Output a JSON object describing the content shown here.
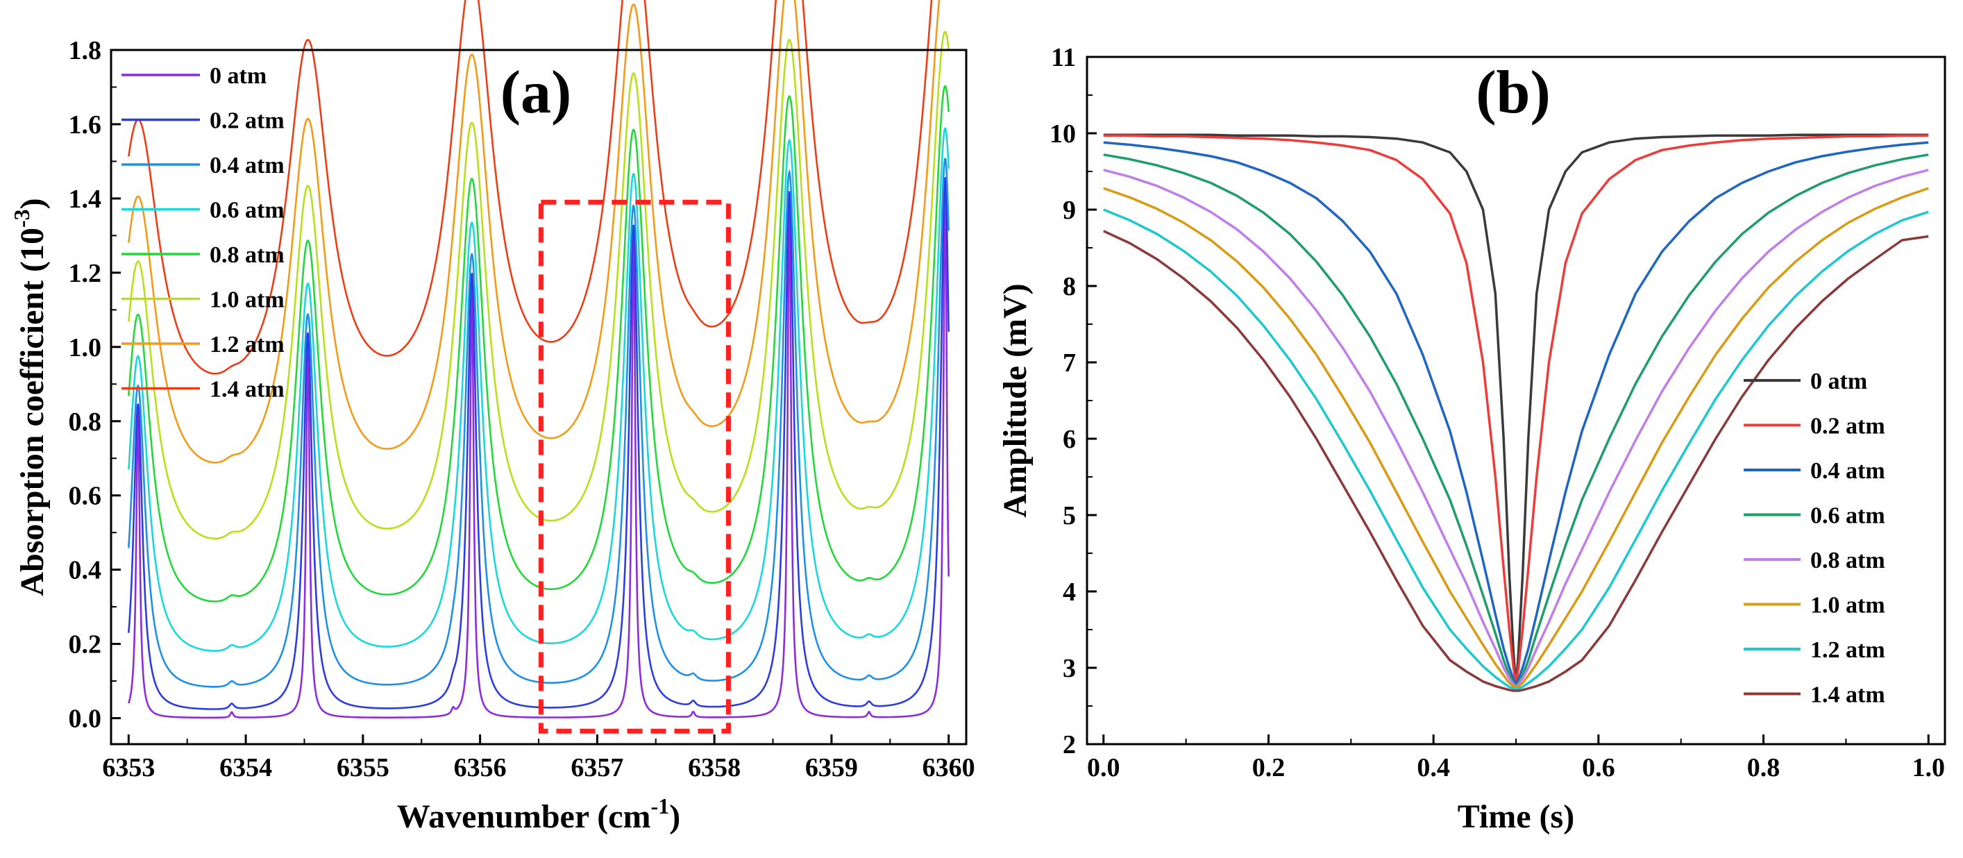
{
  "chart_data": [
    {
      "type": "line",
      "panel_label": "(a)",
      "xlabel": "Wavenumber (cm",
      "xlabel_sup": "-1",
      "xlabel_end": ")",
      "ylabel": "Absorption coefficient (10",
      "ylabel_sup": "-3",
      "ylabel_end": ")",
      "xlim": [
        6352.85,
        6360.15
      ],
      "ylim": [
        -0.07,
        1.8
      ],
      "xticks": [
        6353,
        6354,
        6355,
        6356,
        6357,
        6358,
        6359,
        6360
      ],
      "yticks": [
        0.0,
        0.2,
        0.4,
        0.6,
        0.8,
        1.0,
        1.2,
        1.4,
        1.6,
        1.8
      ],
      "ytick_labels": [
        "0.0",
        "0.2",
        "0.4",
        "0.6",
        "0.8",
        "1.0",
        "1.2",
        "1.4",
        "1.6",
        "1.8"
      ],
      "peaks": [
        {
          "center": 6353.08,
          "height": 0.83
        },
        {
          "center": 6354.53,
          "height": 1.02
        },
        {
          "center": 6355.93,
          "height": 1.18
        },
        {
          "center": 6357.31,
          "height": 1.31
        },
        {
          "center": 6358.64,
          "height": 1.4
        },
        {
          "center": 6359.97,
          "height": 1.44
        }
      ],
      "weak_lines": [
        6353.88,
        6355.77,
        6357.82,
        6359.32
      ],
      "highlight_box": {
        "x": [
          6356.52,
          6358.12
        ],
        "y": [
          -0.035,
          1.39
        ],
        "color": "#ff2020"
      },
      "series": [
        {
          "name": "0 atm",
          "pressure": 0.0,
          "color": "#8b2be2"
        },
        {
          "name": "0.2 atm",
          "pressure": 0.2,
          "color": "#2b3de2"
        },
        {
          "name": "0.4 atm",
          "pressure": 0.4,
          "color": "#1e90e8"
        },
        {
          "name": "0.6 atm",
          "pressure": 0.6,
          "color": "#19d8dc"
        },
        {
          "name": "0.8 atm",
          "pressure": 0.8,
          "color": "#22d83a"
        },
        {
          "name": "1.0 atm",
          "pressure": 1.0,
          "color": "#b8e01a"
        },
        {
          "name": "1.2 atm",
          "pressure": 1.2,
          "color": "#f39a18"
        },
        {
          "name": "1.4 atm",
          "pressure": 1.4,
          "color": "#f03c14"
        }
      ],
      "legend_position": "top-left"
    },
    {
      "type": "line",
      "panel_label": "(b)",
      "xlabel": "Time (s)",
      "ylabel": "Amplitude (mV)",
      "xlim": [
        -0.02,
        1.02
      ],
      "ylim": [
        2,
        11
      ],
      "xticks": [
        0.0,
        0.2,
        0.4,
        0.6,
        0.8,
        1.0
      ],
      "xtick_labels": [
        "0.0",
        "0.2",
        "0.4",
        "0.6",
        "0.8",
        "1.0"
      ],
      "yticks": [
        2,
        3,
        4,
        5,
        6,
        7,
        8,
        9,
        10,
        11
      ],
      "x": [
        0.0,
        0.032,
        0.065,
        0.097,
        0.13,
        0.162,
        0.194,
        0.226,
        0.258,
        0.29,
        0.323,
        0.355,
        0.387,
        0.42,
        0.44,
        0.46,
        0.475,
        0.485,
        0.492,
        0.497,
        0.5,
        0.503,
        0.508,
        0.515,
        0.525,
        0.54,
        0.56,
        0.58,
        0.613,
        0.645,
        0.677,
        0.71,
        0.742,
        0.774,
        0.806,
        0.839,
        0.871,
        0.903,
        0.935,
        0.968,
        1.0
      ],
      "series": [
        {
          "name": "0 atm",
          "color": "#3a3a3a",
          "values": [
            9.98,
            9.98,
            9.98,
            9.98,
            9.98,
            9.97,
            9.97,
            9.97,
            9.96,
            9.96,
            9.95,
            9.93,
            9.88,
            9.75,
            9.5,
            9.0,
            7.9,
            6.0,
            4.2,
            3.2,
            2.75,
            3.2,
            4.2,
            6.0,
            7.9,
            9.0,
            9.5,
            9.75,
            9.88,
            9.93,
            9.95,
            9.96,
            9.97,
            9.97,
            9.97,
            9.98,
            9.98,
            9.98,
            9.98,
            9.98,
            9.98
          ]
        },
        {
          "name": "0.2 atm",
          "color": "#f03b3b",
          "values": [
            9.97,
            9.97,
            9.96,
            9.96,
            9.95,
            9.94,
            9.93,
            9.91,
            9.88,
            9.84,
            9.78,
            9.65,
            9.4,
            8.95,
            8.3,
            7.0,
            5.5,
            4.3,
            3.5,
            3.0,
            2.8,
            3.0,
            3.5,
            4.3,
            5.5,
            7.0,
            8.3,
            8.95,
            9.4,
            9.65,
            9.78,
            9.84,
            9.88,
            9.91,
            9.93,
            9.94,
            9.95,
            9.96,
            9.96,
            9.97,
            9.97
          ]
        },
        {
          "name": "0.4 atm",
          "color": "#1f66c4",
          "values": [
            9.88,
            9.85,
            9.81,
            9.76,
            9.7,
            9.62,
            9.5,
            9.35,
            9.15,
            8.85,
            8.45,
            7.9,
            7.1,
            6.1,
            5.3,
            4.4,
            3.7,
            3.25,
            3.0,
            2.85,
            2.78,
            2.85,
            3.0,
            3.25,
            3.7,
            4.4,
            5.3,
            6.1,
            7.1,
            7.9,
            8.45,
            8.85,
            9.15,
            9.35,
            9.5,
            9.62,
            9.7,
            9.76,
            9.81,
            9.85,
            9.88
          ]
        },
        {
          "name": "0.6 atm",
          "color": "#1f9e6a",
          "values": [
            9.72,
            9.66,
            9.58,
            9.48,
            9.35,
            9.18,
            8.96,
            8.68,
            8.32,
            7.88,
            7.34,
            6.72,
            6.0,
            5.2,
            4.6,
            3.95,
            3.45,
            3.1,
            2.9,
            2.8,
            2.76,
            2.8,
            2.9,
            3.1,
            3.45,
            3.95,
            4.6,
            5.2,
            6.0,
            6.72,
            7.34,
            7.88,
            8.32,
            8.68,
            8.96,
            9.18,
            9.35,
            9.48,
            9.58,
            9.66,
            9.72
          ]
        },
        {
          "name": "0.8 atm",
          "color": "#c07fe8",
          "values": [
            9.52,
            9.43,
            9.31,
            9.16,
            8.97,
            8.74,
            8.45,
            8.1,
            7.68,
            7.19,
            6.62,
            5.98,
            5.3,
            4.55,
            4.1,
            3.6,
            3.25,
            3.0,
            2.86,
            2.78,
            2.75,
            2.78,
            2.86,
            3.0,
            3.25,
            3.6,
            4.1,
            4.55,
            5.3,
            5.98,
            6.62,
            7.19,
            7.68,
            8.1,
            8.45,
            8.74,
            8.97,
            9.16,
            9.31,
            9.43,
            9.52
          ]
        },
        {
          "name": "1.0 atm",
          "color": "#d99a16",
          "values": [
            9.28,
            9.16,
            9.01,
            8.83,
            8.6,
            8.32,
            7.98,
            7.57,
            7.1,
            6.55,
            5.95,
            5.3,
            4.65,
            4.0,
            3.65,
            3.3,
            3.05,
            2.9,
            2.8,
            2.76,
            2.74,
            2.76,
            2.8,
            2.9,
            3.05,
            3.3,
            3.65,
            4.0,
            4.65,
            5.3,
            5.95,
            6.55,
            7.1,
            7.57,
            7.98,
            8.32,
            8.6,
            8.83,
            9.01,
            9.16,
            9.28
          ]
        },
        {
          "name": "1.2 atm",
          "color": "#1fc7cf",
          "values": [
            9.0,
            8.86,
            8.68,
            8.46,
            8.19,
            7.87,
            7.48,
            7.03,
            6.52,
            5.94,
            5.32,
            4.68,
            4.05,
            3.5,
            3.25,
            3.02,
            2.88,
            2.8,
            2.75,
            2.73,
            2.72,
            2.73,
            2.75,
            2.8,
            2.88,
            3.02,
            3.25,
            3.5,
            4.05,
            4.68,
            5.32,
            5.94,
            6.52,
            7.03,
            7.48,
            7.87,
            8.19,
            8.46,
            8.68,
            8.86,
            8.97
          ]
        },
        {
          "name": "1.4 atm",
          "color": "#8b3a3a",
          "values": [
            8.72,
            8.56,
            8.35,
            8.1,
            7.8,
            7.45,
            7.03,
            6.55,
            6.0,
            5.4,
            4.78,
            4.15,
            3.55,
            3.1,
            2.95,
            2.82,
            2.76,
            2.73,
            2.71,
            2.7,
            2.7,
            2.7,
            2.71,
            2.73,
            2.76,
            2.82,
            2.95,
            3.1,
            3.55,
            4.15,
            4.78,
            5.4,
            6.0,
            6.55,
            7.03,
            7.45,
            7.8,
            8.1,
            8.35,
            8.6,
            8.65
          ]
        }
      ],
      "legend_position": "bottom-right"
    }
  ]
}
